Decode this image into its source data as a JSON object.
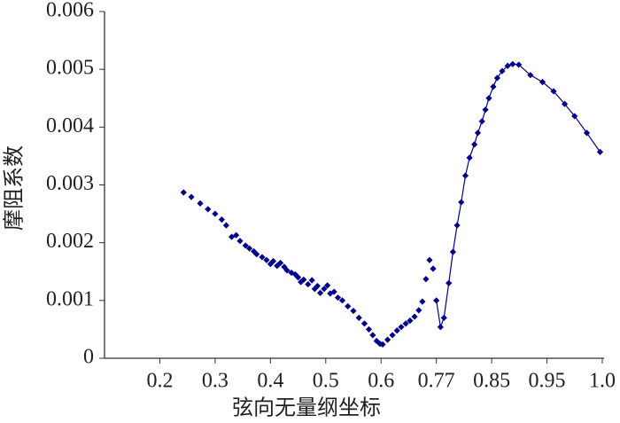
{
  "chart_data": {
    "type": "scatter",
    "x_label": "弦向无量纲坐标",
    "y_label": "摩阻系数",
    "xlim": [
      0.1,
      1.0
    ],
    "xticks": [
      0.2,
      0.3,
      0.4,
      0.5,
      0.6,
      0.77,
      0.85,
      0.95,
      {
        "value": 1.0,
        "label": "1.0"
      }
    ],
    "x_scale": "piecewise-even-ticks",
    "ylim": [
      0,
      0.006
    ],
    "yticks": [
      0,
      0.001,
      0.002,
      0.003,
      0.004,
      0.005,
      0.006
    ],
    "series": [
      {
        "color": "#00008b",
        "connected": false,
        "x": [
          0.243,
          0.257,
          0.273,
          0.287,
          0.3,
          0.312,
          0.32,
          0.33,
          0.338,
          0.345,
          0.355,
          0.362,
          0.37,
          0.375,
          0.385,
          0.393,
          0.4,
          0.405,
          0.412,
          0.418,
          0.425,
          0.43,
          0.438,
          0.445,
          0.45,
          0.455,
          0.46,
          0.468,
          0.475,
          0.48,
          0.485,
          0.49,
          0.497,
          0.503,
          0.508,
          0.515,
          0.522,
          0.53,
          0.54,
          0.55,
          0.56,
          0.57,
          0.578,
          0.585,
          0.592,
          0.598,
          0.605,
          0.62,
          0.635,
          0.649,
          0.662,
          0.676,
          0.689,
          0.703,
          0.716,
          0.727,
          0.738,
          0.749,
          0.76
        ],
        "values": [
          0.00287,
          0.00279,
          0.00268,
          0.00258,
          0.0025,
          0.0024,
          0.0023,
          0.0021,
          0.00213,
          0.00203,
          0.00195,
          0.0019,
          0.00185,
          0.0018,
          0.00175,
          0.0017,
          0.00163,
          0.00168,
          0.0016,
          0.00165,
          0.00158,
          0.00152,
          0.00148,
          0.00145,
          0.0014,
          0.00132,
          0.00136,
          0.00128,
          0.00135,
          0.0012,
          0.00125,
          0.00113,
          0.0012,
          0.00126,
          0.00112,
          0.00115,
          0.00105,
          0.001,
          0.0009,
          0.00082,
          0.0007,
          0.0006,
          0.0005,
          0.0004,
          0.0003,
          0.00025,
          0.00024,
          0.00032,
          0.0004,
          0.00048,
          0.00054,
          0.0006,
          0.00065,
          0.00072,
          0.00083,
          0.00098,
          0.00137,
          0.0017,
          0.00155
        ]
      },
      {
        "color": "#00008b",
        "connected": true,
        "x": [
          0.77,
          0.776,
          0.781,
          0.788,
          0.794,
          0.8,
          0.806,
          0.812,
          0.818,
          0.825,
          0.83,
          0.836,
          0.841,
          0.846,
          0.853,
          0.86,
          0.869,
          0.879,
          0.888,
          0.899,
          0.92,
          0.942,
          0.956,
          0.966,
          0.975,
          0.986,
          0.998
        ],
        "values": [
          0.001,
          0.00054,
          0.0007,
          0.0013,
          0.00184,
          0.0023,
          0.0027,
          0.00316,
          0.00347,
          0.0037,
          0.0039,
          0.0041,
          0.0043,
          0.0045,
          0.0047,
          0.00485,
          0.00497,
          0.00506,
          0.00509,
          0.00508,
          0.0049,
          0.00478,
          0.00462,
          0.0044,
          0.00419,
          0.0039,
          0.00357
        ]
      }
    ]
  }
}
